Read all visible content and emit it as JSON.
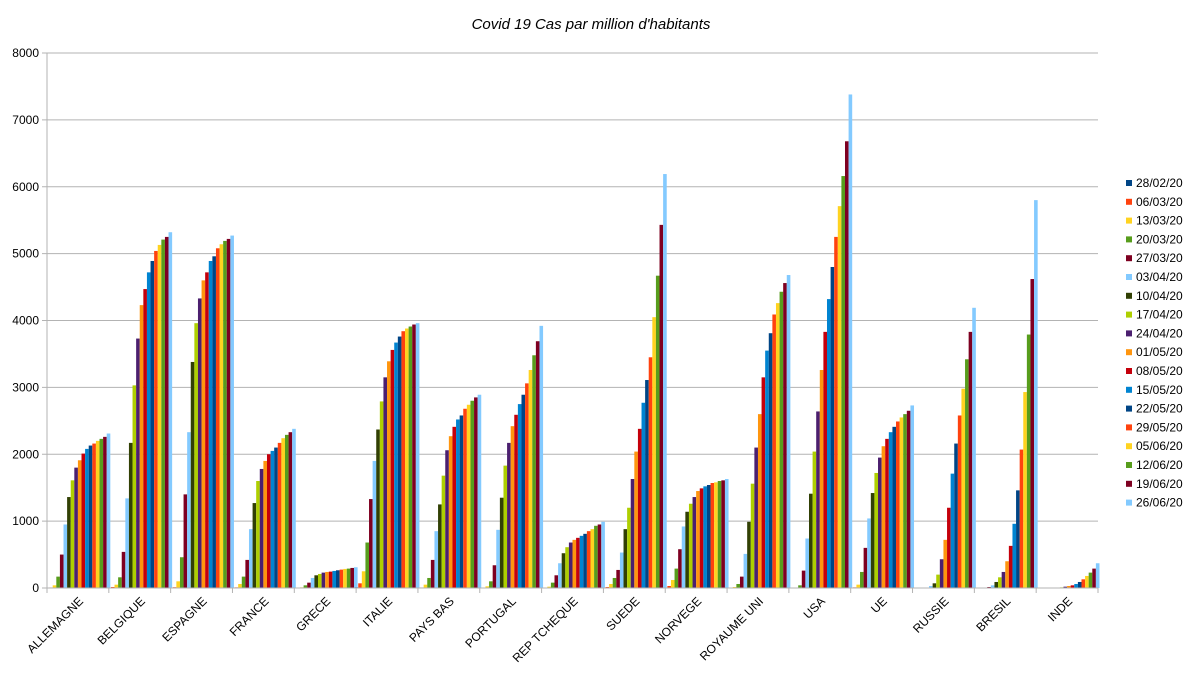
{
  "chart_data": {
    "type": "bar",
    "title": "Covid 19  Cas par million d'habitants",
    "xlabel": "",
    "ylabel": "",
    "ylim": [
      0,
      8000
    ],
    "yticks": [
      0,
      1000,
      2000,
      3000,
      4000,
      5000,
      6000,
      7000,
      8000
    ],
    "grid": true,
    "legend_position": "right",
    "categories": [
      "ALLEMAGNE",
      "BELGIQUE",
      "ESPAGNE",
      "FRANCE",
      "GRECE",
      "ITALIE",
      "PAYS BAS",
      "PORTUGAL",
      "REP TCHEQUE",
      "SUEDE",
      "NORVEGE",
      "ROYAUME UNI",
      "USA",
      "UE",
      "RUSSIE",
      "BRESIL",
      "INDE"
    ],
    "series": [
      {
        "name": "28/02/20",
        "color": "#004586",
        "values": [
          0,
          0,
          0,
          0,
          0,
          10,
          0,
          0,
          0,
          0,
          2,
          0,
          0,
          0,
          0,
          0,
          0
        ]
      },
      {
        "name": "06/03/20",
        "color": "#ff420e",
        "values": [
          8,
          15,
          12,
          10,
          4,
          70,
          8,
          2,
          2,
          15,
          30,
          3,
          1,
          10,
          0,
          0,
          0
        ]
      },
      {
        "name": "13/03/20",
        "color": "#ffd320",
        "values": [
          40,
          50,
          100,
          60,
          10,
          250,
          50,
          25,
          20,
          60,
          120,
          15,
          5,
          50,
          0,
          0,
          0
        ]
      },
      {
        "name": "20/03/20",
        "color": "#579d1c",
        "values": [
          170,
          160,
          460,
          170,
          40,
          680,
          150,
          100,
          80,
          150,
          290,
          60,
          40,
          240,
          2,
          3,
          0
        ]
      },
      {
        "name": "27/03/20",
        "color": "#7e0021",
        "values": [
          500,
          540,
          1400,
          420,
          80,
          1330,
          420,
          340,
          190,
          270,
          580,
          170,
          260,
          600,
          6,
          15,
          0
        ]
      },
      {
        "name": "03/04/20",
        "color": "#83caff",
        "values": [
          950,
          1340,
          2330,
          880,
          150,
          1900,
          850,
          870,
          370,
          530,
          920,
          510,
          740,
          1040,
          30,
          40,
          2
        ]
      },
      {
        "name": "10/04/20",
        "color": "#314004",
        "values": [
          1360,
          2170,
          3380,
          1270,
          190,
          2370,
          1250,
          1350,
          520,
          880,
          1140,
          990,
          1410,
          1420,
          70,
          90,
          5
        ]
      },
      {
        "name": "17/04/20",
        "color": "#aecf00",
        "values": [
          1610,
          3030,
          3960,
          1600,
          210,
          2790,
          1680,
          1830,
          610,
          1200,
          1260,
          1560,
          2040,
          1720,
          200,
          160,
          10
        ]
      },
      {
        "name": "24/04/20",
        "color": "#4b1f6f",
        "values": [
          1800,
          3730,
          4330,
          1780,
          230,
          3150,
          2060,
          2170,
          680,
          1630,
          1360,
          2100,
          2640,
          1950,
          430,
          240,
          20
        ]
      },
      {
        "name": "01/05/20",
        "color": "#ff950e",
        "values": [
          1910,
          4230,
          4600,
          1900,
          240,
          3390,
          2270,
          2420,
          720,
          2040,
          1450,
          2600,
          3260,
          2120,
          720,
          400,
          30
        ]
      },
      {
        "name": "08/05/20",
        "color": "#c5000b",
        "values": [
          2010,
          4470,
          4720,
          2000,
          245,
          3560,
          2410,
          2590,
          750,
          2380,
          1490,
          3150,
          3830,
          2230,
          1200,
          630,
          40
        ]
      },
      {
        "name": "15/05/20",
        "color": "#0084d1",
        "values": [
          2080,
          4720,
          4890,
          2050,
          255,
          3670,
          2520,
          2750,
          780,
          2770,
          1520,
          3550,
          4320,
          2330,
          1710,
          960,
          60
        ]
      },
      {
        "name": "22/05/20",
        "color": "#004586",
        "values": [
          2130,
          4890,
          4960,
          2100,
          265,
          3760,
          2580,
          2890,
          810,
          3110,
          1540,
          3810,
          4800,
          2410,
          2160,
          1460,
          90
        ]
      },
      {
        "name": "29/05/20",
        "color": "#ff420e",
        "values": [
          2160,
          5040,
          5080,
          2170,
          275,
          3840,
          2680,
          3060,
          850,
          3450,
          1570,
          4090,
          5250,
          2490,
          2580,
          2070,
          130
        ]
      },
      {
        "name": "05/06/20",
        "color": "#ffd320",
        "values": [
          2200,
          5130,
          5140,
          2240,
          285,
          3880,
          2740,
          3260,
          880,
          4050,
          1580,
          4260,
          5710,
          2550,
          2980,
          2930,
          180
        ]
      },
      {
        "name": "12/06/20",
        "color": "#579d1c",
        "values": [
          2230,
          5210,
          5190,
          2290,
          290,
          3910,
          2800,
          3480,
          930,
          4670,
          1600,
          4430,
          6160,
          2600,
          3420,
          3790,
          230
        ]
      },
      {
        "name": "19/06/20",
        "color": "#7e0021",
        "values": [
          2260,
          5250,
          5220,
          2330,
          300,
          3940,
          2850,
          3690,
          950,
          5430,
          1610,
          4560,
          6680,
          2650,
          3830,
          4620,
          290
        ]
      },
      {
        "name": "26/06/20",
        "color": "#83caff",
        "values": [
          2310,
          5320,
          5270,
          2380,
          310,
          3960,
          2890,
          3920,
          990,
          6190,
          1630,
          4680,
          7380,
          2730,
          4190,
          5800,
          370
        ]
      }
    ]
  }
}
